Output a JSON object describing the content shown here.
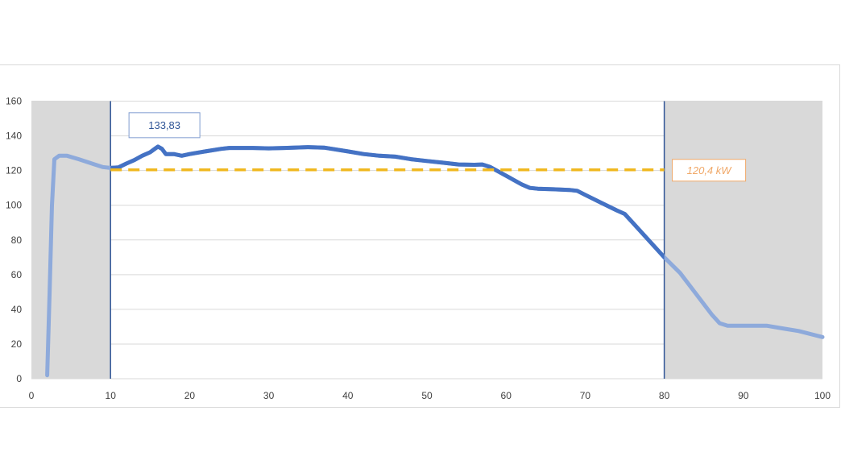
{
  "chart_data": {
    "type": "line",
    "title": "",
    "xlabel": "",
    "ylabel": "",
    "xlim": [
      0,
      100
    ],
    "ylim": [
      0,
      160
    ],
    "x_ticks": [
      "0",
      "10",
      "20",
      "30",
      "40",
      "50",
      "60",
      "70",
      "80",
      "90",
      "100"
    ],
    "y_ticks": [
      "0",
      "20",
      "40",
      "60",
      "80",
      "100",
      "120",
      "140",
      "160"
    ],
    "grid": "horizontal",
    "shaded_ranges": [
      [
        0,
        10
      ],
      [
        80,
        100
      ]
    ],
    "marker_lines_x": [
      10,
      80
    ],
    "reference_line": {
      "y": 120.4,
      "x_range": [
        10,
        80
      ],
      "label": "120,4 kW",
      "color": "#f0b820"
    },
    "peak_label": {
      "x": 16,
      "y": 133.83,
      "label": "133,83"
    },
    "series": [
      {
        "color": "#4472c4",
        "x": [
          2,
          2.3,
          2.6,
          2.9,
          3.5,
          4.5,
          6,
          8,
          9,
          10,
          11,
          12,
          13,
          14,
          15,
          15.6,
          16,
          16.5,
          17,
          18,
          19,
          20,
          22,
          24,
          25,
          28,
          30,
          32,
          35,
          37,
          40,
          42,
          44,
          46,
          48,
          50,
          52,
          54,
          56,
          57,
          58,
          60,
          62,
          63,
          64,
          66,
          68,
          69,
          70,
          72,
          74,
          75,
          76,
          78,
          80,
          82,
          84,
          86,
          87,
          88,
          90,
          92,
          93,
          95,
          97,
          100
        ],
        "y": [
          2,
          50,
          100,
          126.5,
          128.5,
          128.5,
          126.5,
          123.5,
          122,
          121.5,
          121.8,
          124,
          126,
          128.5,
          130.5,
          132.5,
          133.8,
          132.5,
          129.5,
          129.5,
          128.5,
          129.5,
          131,
          132.5,
          133,
          133,
          132.8,
          133,
          133.5,
          133.2,
          131,
          129.5,
          128.5,
          128,
          126.5,
          125.5,
          124.5,
          123.5,
          123.3,
          123.5,
          122,
          117,
          112,
          110,
          109.5,
          109.2,
          108.8,
          108.3,
          106,
          101.5,
          97,
          95,
          90,
          80,
          70,
          61,
          49,
          37,
          32,
          30.5,
          30.5,
          30.5,
          30.5,
          29,
          27.5,
          24
        ]
      }
    ]
  },
  "colors": {
    "line": "#4472c4",
    "line_faded": "#8eaadb",
    "shade": "#d9d9d9",
    "reference": "#f0b820",
    "reference_label": "#f0a868",
    "marker": "#2f5597",
    "grid": "#d9d9d9"
  }
}
